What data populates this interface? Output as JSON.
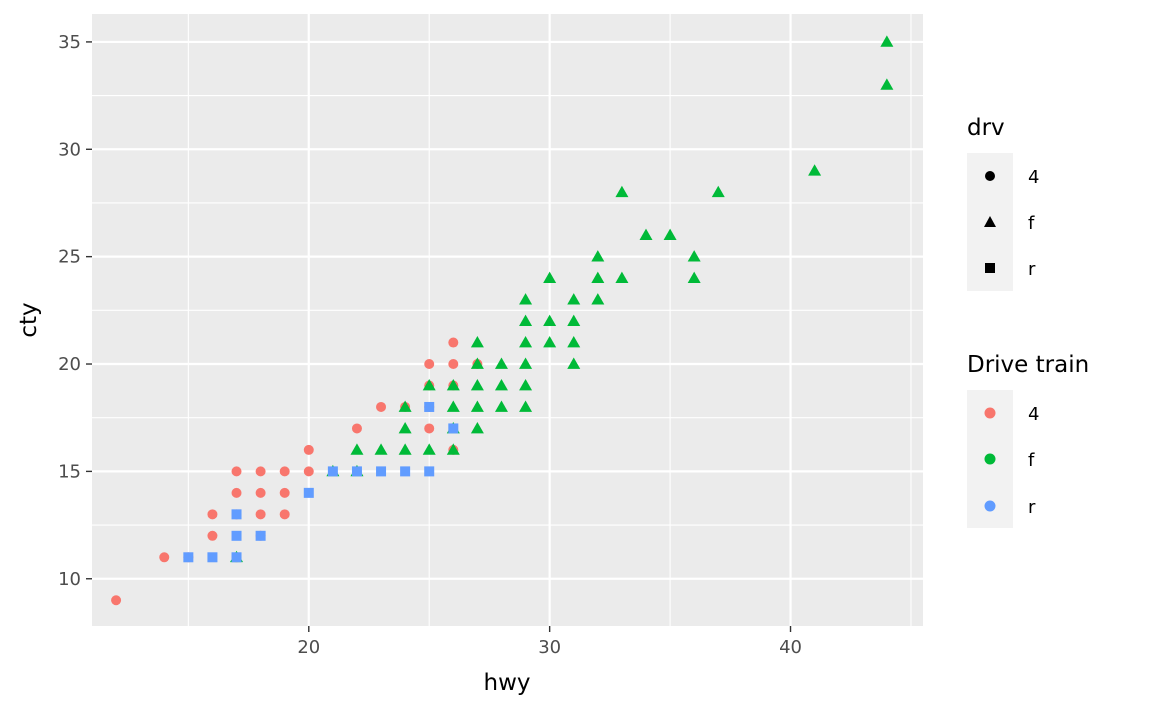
{
  "chart_data": {
    "type": "scatter",
    "title": "",
    "xlabel": "hwy",
    "ylabel": "cty",
    "xlim": [
      11,
      45.5
    ],
    "ylim": [
      7.8,
      36.3
    ],
    "x_ticks": [
      20,
      30,
      40
    ],
    "y_ticks": [
      10,
      15,
      20,
      25,
      30,
      35
    ],
    "grid": true,
    "legend_position": "right",
    "colors": {
      "4": "#F8766D",
      "f": "#00BA38",
      "r": "#619CFF"
    },
    "legends": [
      {
        "title": "drv",
        "type": "shape",
        "entries": [
          {
            "label": "4",
            "shape": "circle"
          },
          {
            "label": "f",
            "shape": "triangle"
          },
          {
            "label": "r",
            "shape": "square"
          }
        ]
      },
      {
        "title": "Drive train",
        "type": "color",
        "entries": [
          {
            "label": "4",
            "color": "#F8766D"
          },
          {
            "label": "f",
            "color": "#00BA38"
          },
          {
            "label": "r",
            "color": "#619CFF"
          }
        ]
      }
    ],
    "series": [
      {
        "drv": "4",
        "shape": "circle",
        "color": "#F8766D",
        "points": [
          [
            12,
            9
          ],
          [
            14,
            11
          ],
          [
            15,
            11
          ],
          [
            16,
            12
          ],
          [
            16,
            13
          ],
          [
            17,
            11
          ],
          [
            17,
            13
          ],
          [
            17,
            14
          ],
          [
            17,
            15
          ],
          [
            18,
            12
          ],
          [
            18,
            13
          ],
          [
            18,
            14
          ],
          [
            18,
            15
          ],
          [
            19,
            13
          ],
          [
            19,
            14
          ],
          [
            19,
            15
          ],
          [
            20,
            15
          ],
          [
            20,
            16
          ],
          [
            22,
            17
          ],
          [
            23,
            18
          ],
          [
            24,
            18
          ],
          [
            25,
            17
          ],
          [
            25,
            18
          ],
          [
            25,
            19
          ],
          [
            25,
            20
          ],
          [
            26,
            16
          ],
          [
            26,
            19
          ],
          [
            26,
            20
          ],
          [
            26,
            21
          ],
          [
            27,
            20
          ]
        ]
      },
      {
        "drv": "f",
        "shape": "triangle",
        "color": "#00BA38",
        "points": [
          [
            17,
            11
          ],
          [
            21,
            15
          ],
          [
            22,
            15
          ],
          [
            22,
            16
          ],
          [
            23,
            16
          ],
          [
            24,
            16
          ],
          [
            24,
            17
          ],
          [
            24,
            18
          ],
          [
            25,
            16
          ],
          [
            25,
            19
          ],
          [
            26,
            16
          ],
          [
            26,
            17
          ],
          [
            26,
            18
          ],
          [
            26,
            19
          ],
          [
            27,
            17
          ],
          [
            27,
            18
          ],
          [
            27,
            19
          ],
          [
            27,
            20
          ],
          [
            27,
            21
          ],
          [
            28,
            18
          ],
          [
            28,
            19
          ],
          [
            28,
            20
          ],
          [
            29,
            18
          ],
          [
            29,
            19
          ],
          [
            29,
            20
          ],
          [
            29,
            21
          ],
          [
            29,
            22
          ],
          [
            29,
            23
          ],
          [
            30,
            21
          ],
          [
            30,
            22
          ],
          [
            30,
            24
          ],
          [
            31,
            20
          ],
          [
            31,
            21
          ],
          [
            31,
            22
          ],
          [
            31,
            23
          ],
          [
            32,
            23
          ],
          [
            32,
            24
          ],
          [
            32,
            25
          ],
          [
            33,
            24
          ],
          [
            33,
            28
          ],
          [
            34,
            26
          ],
          [
            35,
            26
          ],
          [
            36,
            24
          ],
          [
            36,
            25
          ],
          [
            37,
            28
          ],
          [
            41,
            29
          ],
          [
            44,
            33
          ],
          [
            44,
            35
          ]
        ]
      },
      {
        "drv": "r",
        "shape": "square",
        "color": "#619CFF",
        "points": [
          [
            15,
            11
          ],
          [
            16,
            11
          ],
          [
            17,
            11
          ],
          [
            17,
            12
          ],
          [
            17,
            13
          ],
          [
            18,
            12
          ],
          [
            20,
            14
          ],
          [
            21,
            15
          ],
          [
            22,
            15
          ],
          [
            23,
            15
          ],
          [
            24,
            15
          ],
          [
            25,
            15
          ],
          [
            25,
            18
          ],
          [
            26,
            17
          ]
        ]
      }
    ]
  }
}
